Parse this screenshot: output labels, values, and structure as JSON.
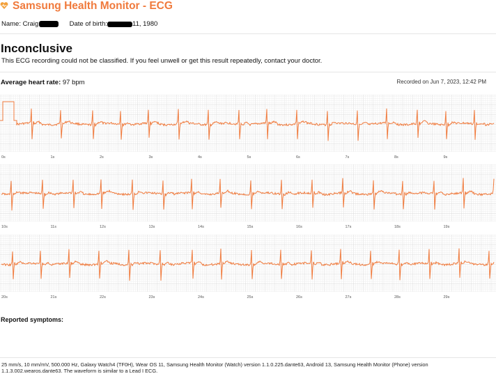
{
  "app": {
    "title": "Samsung Health Monitor - ECG"
  },
  "patient": {
    "name_label": "Name:",
    "name": "Craig",
    "dob_label": "Date of birth:",
    "dob": "11, 1980"
  },
  "result": {
    "title": "Inconclusive",
    "description": "This ECG recording could not be classified. If you feel unwell or get this result repeatedly, contact your doctor."
  },
  "heart_rate": {
    "label": "Average heart rate:",
    "value": "97 bpm"
  },
  "recorded": "Recorded on Jun 7, 2023, 12:42 PM",
  "strips": [
    {
      "ticks": [
        "0s",
        "1s",
        "2s",
        "3s",
        "4s",
        "5s",
        "6s",
        "7s",
        "8s",
        "9s"
      ]
    },
    {
      "ticks": [
        "10s",
        "11s",
        "12s",
        "13s",
        "14s",
        "15s",
        "16s",
        "17s",
        "18s",
        "19s"
      ]
    },
    {
      "ticks": [
        "20s",
        "21s",
        "22s",
        "23s",
        "24s",
        "25s",
        "26s",
        "27s",
        "28s",
        "29s"
      ]
    }
  ],
  "colors": {
    "accent": "#f07a3c",
    "waveform": "#f07a3c",
    "grid_minor": "#eeeeee",
    "grid_major": "#d9d9d9"
  },
  "icons": {
    "app": "heart-icon"
  },
  "symptoms": {
    "label": "Reported symptoms:"
  },
  "footer": "25 mm/s, 10 mm/mV, 500.000 Hz, Galaxy Watch4 (TF0H), Wear OS 11, Samsung Health Monitor (Watch) version 1.1.0.225.dante63, Android 13, Samsung Health Monitor (Phone) version 1.1.3.002.wearos.dante63. The waveform is similar to a Lead I ECG."
}
